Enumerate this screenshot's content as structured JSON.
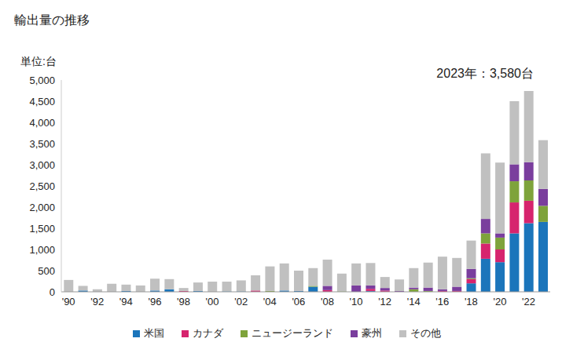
{
  "chart_data": {
    "type": "bar",
    "title": "輸出量の推移",
    "y_label": "単位:台",
    "annotation": "2023年：3,580台",
    "stacked": true,
    "grid": false,
    "legend": "bottom",
    "categories": [
      "'90",
      null,
      "'92",
      null,
      "'94",
      null,
      "'96",
      null,
      "'98",
      null,
      "'00",
      null,
      "'02",
      null,
      "'04",
      null,
      "'06",
      null,
      "'08",
      null,
      "'10",
      null,
      "'12",
      null,
      "'14",
      null,
      "'16",
      null,
      "'18",
      null,
      "'20",
      null,
      "'22",
      null
    ],
    "ylim": [
      0,
      5000
    ],
    "yticks": [
      0,
      500,
      {
        "value": 1000,
        "label": "1,000"
      },
      {
        "value": 1500,
        "label": "1,500"
      },
      {
        "value": 2000,
        "label": "2,000"
      },
      {
        "value": 2500,
        "label": "2,500"
      },
      {
        "value": 3000,
        "label": "3,000"
      },
      {
        "value": 3500,
        "label": "3,500"
      },
      {
        "value": 4000,
        "label": "4,000"
      },
      {
        "value": 4500,
        "label": "4,500"
      },
      {
        "value": 5000,
        "label": "5,000"
      }
    ],
    "series": [
      {
        "name": "米国",
        "color": "#1b75bb",
        "values": [
          0,
          30,
          0,
          0,
          20,
          0,
          30,
          60,
          0,
          20,
          0,
          10,
          10,
          0,
          0,
          30,
          20,
          120,
          0,
          0,
          0,
          20,
          0,
          0,
          0,
          0,
          0,
          0,
          200,
          780,
          700,
          1380,
          1620,
          1650
        ]
      },
      {
        "name": "カナダ",
        "color": "#d6246e",
        "values": [
          0,
          0,
          0,
          0,
          0,
          0,
          0,
          0,
          20,
          0,
          0,
          0,
          0,
          30,
          0,
          0,
          0,
          0,
          40,
          0,
          0,
          50,
          30,
          0,
          0,
          0,
          20,
          20,
          100,
          360,
          300,
          730,
          530,
          0
        ]
      },
      {
        "name": "ニュージーランド",
        "color": "#7ea33b",
        "values": [
          0,
          0,
          0,
          0,
          0,
          0,
          0,
          0,
          0,
          0,
          0,
          0,
          0,
          0,
          20,
          0,
          0,
          20,
          0,
          10,
          0,
          0,
          0,
          0,
          60,
          20,
          0,
          0,
          20,
          240,
          280,
          500,
          480,
          380
        ]
      },
      {
        "name": "豪州",
        "color": "#7a3e9d",
        "values": [
          0,
          0,
          0,
          0,
          0,
          0,
          0,
          0,
          0,
          0,
          0,
          0,
          0,
          0,
          0,
          0,
          0,
          0,
          100,
          0,
          150,
          80,
          60,
          20,
          40,
          80,
          40,
          100,
          220,
          340,
          100,
          400,
          430,
          400
        ]
      },
      {
        "name": "その他",
        "color": "#c0c0c0",
        "values": [
          280,
          110,
          60,
          190,
          150,
          150,
          280,
          240,
          70,
          200,
          240,
          230,
          260,
          360,
          580,
          640,
          480,
          420,
          620,
          420,
          520,
          530,
          260,
          270,
          460,
          590,
          770,
          680,
          670,
          1550,
          1670,
          1490,
          1680,
          1150
        ]
      }
    ]
  }
}
